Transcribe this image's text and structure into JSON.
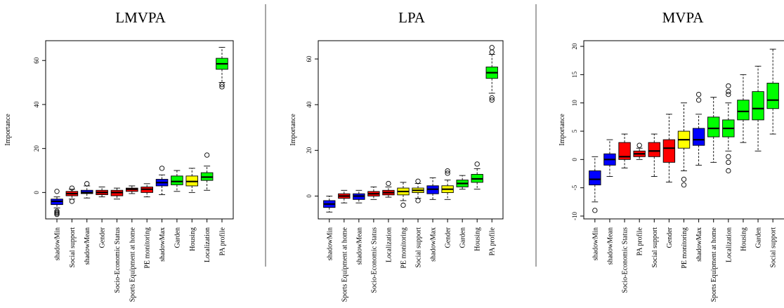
{
  "chart_data": [
    {
      "type": "boxplot",
      "title": "LMVPA",
      "ylabel": "Importance",
      "xlabel": "",
      "ylim": [
        -12,
        69
      ],
      "yticks": [
        0,
        20,
        40,
        60
      ],
      "grid": false,
      "categories": [
        "shadowMin",
        "Social support",
        "shadowMean",
        "Gender",
        "Socio-Economic Status",
        "Sports Equipment at home",
        "PE monitoring",
        "shadowMax",
        "Garden",
        "Housing",
        "Localization",
        "PA profile"
      ],
      "colors": [
        "#0000ff",
        "#ff0000",
        "#0000ff",
        "#ff0000",
        "#ff0000",
        "#ff0000",
        "#ff0000",
        "#0000ff",
        "#00ff00",
        "#ffff00",
        "#00ff00",
        "#00ff00"
      ],
      "boxes": [
        {
          "min": -7,
          "q1": -5.5,
          "median": -4,
          "q3": -3,
          "max": -2,
          "outliers": [
            0.5,
            -8.5,
            -9,
            -9.5,
            -10
          ]
        },
        {
          "min": -3,
          "q1": -1.5,
          "median": -0.5,
          "q3": 0.5,
          "max": 1.5,
          "outliers": [
            2,
            -4
          ]
        },
        {
          "min": -2.5,
          "q1": -0.5,
          "median": 0,
          "q3": 1,
          "max": 3,
          "outliers": [
            4
          ]
        },
        {
          "min": -2,
          "q1": -1,
          "median": 0,
          "q3": 1,
          "max": 2.5,
          "outliers": []
        },
        {
          "min": -3,
          "q1": -1.5,
          "median": 0,
          "q3": 1,
          "max": 2,
          "outliers": []
        },
        {
          "min": -0.5,
          "q1": 0.5,
          "median": 1.5,
          "q3": 2,
          "max": 3,
          "outliers": []
        },
        {
          "min": -2,
          "q1": 0,
          "median": 1.5,
          "q3": 2.5,
          "max": 4,
          "outliers": []
        },
        {
          "min": -1,
          "q1": 3,
          "median": 4.5,
          "q3": 6,
          "max": 8,
          "outliers": [
            11
          ]
        },
        {
          "min": 0.5,
          "q1": 3.5,
          "median": 5,
          "q3": 7.5,
          "max": 10,
          "outliers": []
        },
        {
          "min": 0,
          "q1": 3,
          "median": 5,
          "q3": 7.5,
          "max": 11,
          "outliers": []
        },
        {
          "min": 1,
          "q1": 5.5,
          "median": 7,
          "q3": 9,
          "max": 12,
          "outliers": [
            17
          ]
        },
        {
          "min": 50,
          "q1": 56,
          "median": 58.5,
          "q3": 61,
          "max": 66,
          "outliers": [
            48,
            49
          ]
        }
      ]
    },
    {
      "type": "boxplot",
      "title": "LPA",
      "ylabel": "Importance",
      "xlabel": "",
      "ylim": [
        -10,
        68
      ],
      "yticks": [
        0,
        20,
        40,
        60
      ],
      "grid": false,
      "categories": [
        "shadowMin",
        "Sports Equipment at home",
        "shadowMean",
        "Socio-Economic Status",
        "Localization",
        "PE monitoring",
        "Social support",
        "shadowMax",
        "Gender",
        "Garden",
        "Housing",
        "PA profile"
      ],
      "colors": [
        "#0000ff",
        "#ff0000",
        "#0000ff",
        "#ff0000",
        "#ff0000",
        "#ffff00",
        "#ffff00",
        "#0000ff",
        "#ffff00",
        "#00ff00",
        "#00ff00",
        "#00ff00"
      ],
      "boxes": [
        {
          "min": -7,
          "q1": -5,
          "median": -3.5,
          "q3": -2,
          "max": 0,
          "outliers": []
        },
        {
          "min": -3,
          "q1": -1,
          "median": 0,
          "q3": 1,
          "max": 2.5,
          "outliers": []
        },
        {
          "min": -3,
          "q1": -1.5,
          "median": 0,
          "q3": 1,
          "max": 2.5,
          "outliers": []
        },
        {
          "min": -1.5,
          "q1": 0,
          "median": 1,
          "q3": 2,
          "max": 4,
          "outliers": []
        },
        {
          "min": -0.5,
          "q1": 0.5,
          "median": 1.5,
          "q3": 2.5,
          "max": 4,
          "outliers": [
            5.5
          ]
        },
        {
          "min": -2,
          "q1": 0.5,
          "median": 2,
          "q3": 3.5,
          "max": 6,
          "outliers": [
            -4
          ]
        },
        {
          "min": -1,
          "q1": 1.5,
          "median": 2.5,
          "q3": 3.5,
          "max": 5.5,
          "outliers": [
            6.5,
            -2
          ]
        },
        {
          "min": -1.5,
          "q1": 1,
          "median": 3,
          "q3": 4.5,
          "max": 8,
          "outliers": []
        },
        {
          "min": -1.5,
          "q1": 1.5,
          "median": 3,
          "q3": 4.5,
          "max": 7,
          "outliers": [
            10,
            11
          ]
        },
        {
          "min": 3,
          "q1": 4,
          "median": 5.5,
          "q3": 7,
          "max": 9,
          "outliers": []
        },
        {
          "min": 3,
          "q1": 6,
          "median": 7.5,
          "q3": 9.5,
          "max": 12,
          "outliers": [
            14
          ]
        },
        {
          "min": 45,
          "q1": 51.5,
          "median": 54,
          "q3": 56.5,
          "max": 62,
          "outliers": [
            43,
            42,
            65,
            63
          ]
        }
      ]
    },
    {
      "type": "boxplot",
      "title": "MVPA",
      "ylabel": "Importance",
      "xlabel": "",
      "ylim": [
        -10.5,
        21
      ],
      "yticks": [
        -10,
        -5,
        0,
        5,
        10,
        15,
        20
      ],
      "grid": false,
      "categories": [
        "shadowMin",
        "shadowMean",
        "Socio-Economic Status",
        "PA profile",
        "Social support",
        "Gender",
        "PE monitoring",
        "shadowMax",
        "Sports Equipment at home",
        "Localization",
        "Housing",
        "Garden",
        "Social support"
      ],
      "colors": [
        "#0000ff",
        "#0000ff",
        "#ff0000",
        "#ff0000",
        "#ff0000",
        "#ff0000",
        "#ffff00",
        "#0000ff",
        "#00ff00",
        "#00ff00",
        "#00ff00",
        "#00ff00",
        "#00ff00"
      ],
      "boxes": [
        {
          "min": -7.5,
          "q1": -4.5,
          "median": -3.5,
          "q3": -2,
          "max": 0.5,
          "outliers": [
            -9
          ]
        },
        {
          "min": -3,
          "q1": -1,
          "median": 0,
          "q3": 1,
          "max": 3.5,
          "outliers": []
        },
        {
          "min": -1.5,
          "q1": 0,
          "median": 0.5,
          "q3": 3,
          "max": 4.5,
          "outliers": []
        },
        {
          "min": 0,
          "q1": 0.5,
          "median": 1,
          "q3": 1.5,
          "max": 2,
          "outliers": [
            2.5
          ]
        },
        {
          "min": -3,
          "q1": 0.5,
          "median": 1.5,
          "q3": 3,
          "max": 4.5,
          "outliers": []
        },
        {
          "min": -4,
          "q1": -0.5,
          "median": 2,
          "q3": 3.5,
          "max": 8,
          "outliers": []
        },
        {
          "min": -2,
          "q1": 2,
          "median": 3.5,
          "q3": 5,
          "max": 10,
          "outliers": [
            -3.5,
            -4.5
          ]
        },
        {
          "min": -1,
          "q1": 2.5,
          "median": 3.5,
          "q3": 5.5,
          "max": 8,
          "outliers": [
            10.5,
            11.5
          ]
        },
        {
          "min": -0.5,
          "q1": 4,
          "median": 5.5,
          "q3": 7.5,
          "max": 11,
          "outliers": []
        },
        {
          "min": 1.5,
          "q1": 4,
          "median": 5.5,
          "q3": 7,
          "max": 10,
          "outliers": [
            12,
            11.5,
            13,
            0.5,
            -0.5,
            -2
          ]
        },
        {
          "min": 3,
          "q1": 7,
          "median": 8.5,
          "q3": 10.5,
          "max": 15,
          "outliers": []
        },
        {
          "min": 1.5,
          "q1": 7,
          "median": 9,
          "q3": 12,
          "max": 16.5,
          "outliers": []
        },
        {
          "min": 4.5,
          "q1": 9,
          "median": 10.5,
          "q3": 13.5,
          "max": 19.5,
          "outliers": []
        }
      ]
    }
  ]
}
